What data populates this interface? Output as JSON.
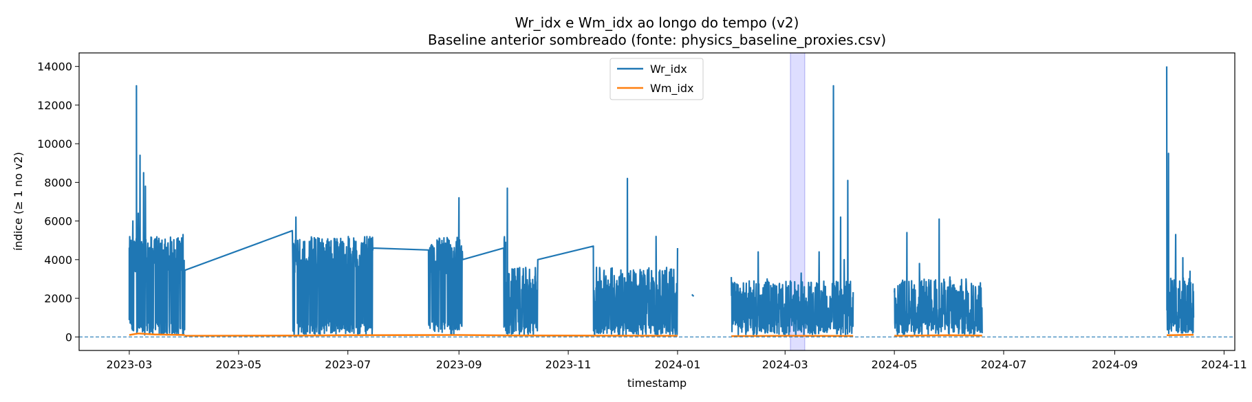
{
  "chart_data": {
    "type": "line",
    "title": "Wr_idx e Wm_idx ao longo do tempo (v2)",
    "subtitle": "Baseline anterior sombreado (fonte: physics_baseline_proxies.csv)",
    "xlabel": "timestamp",
    "ylabel": "índice (≥ 1 no v2)",
    "xlim": [
      "2023-02-01",
      "2024-11-07"
    ],
    "ylim": [
      -700,
      14700
    ],
    "x_ticks": [
      "2023-03",
      "2023-05",
      "2023-07",
      "2023-09",
      "2023-11",
      "2024-01",
      "2024-03",
      "2024-05",
      "2024-07",
      "2024-09",
      "2024-11"
    ],
    "y_ticks": [
      0,
      2000,
      4000,
      6000,
      8000,
      10000,
      12000,
      14000
    ],
    "grid": false,
    "legend_position": "upper center",
    "baseline_span": [
      "2024-03-04",
      "2024-03-12"
    ],
    "reference_line": {
      "y": 0,
      "style": "dashed"
    },
    "colors": {
      "Wr_idx": "#1f77b4",
      "Wm_idx": "#ff7f0e",
      "baseline_span": "#ccccff",
      "reference_line": "#1f77b4"
    },
    "series": [
      {
        "name": "Wr_idx",
        "color": "#1f77b4",
        "segments": [
          {
            "start": "2023-03-01",
            "end": "2023-09-27",
            "min": 100,
            "base": 4200,
            "spread": 1000,
            "envelope": "dense",
            "points": [
              [
                "2023-03-01",
                2800
              ],
              [
                "2023-03-01",
                4600
              ],
              [
                "2023-03-01",
                900
              ],
              [
                "2023-03-02",
                5000
              ],
              [
                "2023-03-03",
                6000
              ],
              [
                "2023-03-05",
                4200
              ],
              [
                "2023-03-05",
                13000
              ],
              [
                "2023-03-06",
                6400
              ],
              [
                "2023-03-07",
                9400
              ],
              [
                "2023-03-08",
                4300
              ],
              [
                "2023-03-09",
                8500
              ],
              [
                "2023-03-10",
                7800
              ],
              [
                "2023-03-12",
                4600
              ],
              [
                "2023-03-15",
                5000
              ],
              [
                "2023-03-20",
                4500
              ],
              [
                "2023-03-25",
                4000
              ],
              [
                "2023-03-26",
                600
              ],
              [
                "2023-03-28",
                5100
              ],
              [
                "2023-03-31",
                5300
              ],
              [
                "2023-04-01",
                3450
              ],
              [
                "2023-05-31",
                5500
              ],
              [
                "2023-06-01",
                100
              ],
              [
                "2023-06-02",
                6200
              ],
              [
                "2023-06-15",
                5100
              ],
              [
                "2023-06-27",
                5100
              ],
              [
                "2023-07-15",
                4600
              ],
              [
                "2023-08-15",
                4500
              ],
              [
                "2023-08-28",
                4600
              ],
              [
                "2023-09-01",
                7200
              ],
              [
                "2023-09-02",
                1200
              ],
              [
                "2023-09-03",
                4000
              ],
              [
                "2023-09-26",
                4600
              ]
            ]
          },
          {
            "start": "2023-09-27",
            "end": "2024-01-01",
            "min": 100,
            "base": 2400,
            "spread": 1200,
            "envelope": "dense",
            "points": [
              [
                "2023-09-27",
                2000
              ],
              [
                "2023-09-28",
                7700
              ],
              [
                "2023-10-15",
                4000
              ],
              [
                "2023-11-15",
                4700
              ],
              [
                "2023-12-04",
                8200
              ],
              [
                "2023-12-20",
                5200
              ],
              [
                "2024-01-01",
                4600
              ]
            ]
          },
          {
            "start": "2024-01-09",
            "end": "2024-01-10",
            "points": [
              [
                "2024-01-09",
                2200
              ],
              [
                "2024-01-10",
                2100
              ]
            ]
          },
          {
            "start": "2024-01-31",
            "end": "2024-04-08",
            "min": 100,
            "base": 1800,
            "spread": 1100,
            "envelope": "dense",
            "points": [
              [
                "2024-01-31",
                3100
              ],
              [
                "2024-02-09",
                2000
              ],
              [
                "2024-02-15",
                4400
              ],
              [
                "2024-02-20",
                3000
              ],
              [
                "2024-03-10",
                3300
              ],
              [
                "2024-03-20",
                4400
              ],
              [
                "2024-03-28",
                13000
              ],
              [
                "2024-03-30",
                2000
              ],
              [
                "2024-04-01",
                6200
              ],
              [
                "2024-04-03",
                4000
              ],
              [
                "2024-04-05",
                8100
              ],
              [
                "2024-04-07",
                1500
              ]
            ]
          },
          {
            "start": "2024-05-01",
            "end": "2024-06-19",
            "min": 100,
            "base": 1800,
            "spread": 1200,
            "envelope": "dense",
            "points": [
              [
                "2024-05-01",
                2300
              ],
              [
                "2024-05-08",
                5400
              ],
              [
                "2024-05-15",
                3800
              ],
              [
                "2024-05-26",
                6100
              ],
              [
                "2024-06-01",
                3100
              ],
              [
                "2024-06-10",
                3000
              ],
              [
                "2024-06-18",
                2800
              ]
            ]
          },
          {
            "start": "2024-09-30",
            "end": "2024-10-15",
            "min": 100,
            "base": 2000,
            "spread": 1100,
            "envelope": "dense",
            "points": [
              [
                "2024-09-30",
                14000
              ],
              [
                "2024-10-01",
                9500
              ],
              [
                "2024-10-02",
                1400
              ],
              [
                "2024-10-05",
                5300
              ],
              [
                "2024-10-09",
                4100
              ],
              [
                "2024-10-13",
                3400
              ],
              [
                "2024-10-15",
                1000
              ]
            ]
          }
        ]
      },
      {
        "name": "Wm_idx",
        "color": "#ff7f0e",
        "segments": [
          {
            "start": "2023-03-01",
            "end": "2023-04-01",
            "points": [
              [
                "2023-03-01",
                100
              ],
              [
                "2023-03-06",
                180
              ],
              [
                "2023-03-15",
                130
              ],
              [
                "2023-04-01",
                100
              ]
            ]
          },
          {
            "start": "2023-04-01",
            "end": "2023-09-27",
            "points": [
              [
                "2023-04-01",
                60
              ],
              [
                "2023-06-01",
                70
              ],
              [
                "2023-07-01",
                90
              ],
              [
                "2023-09-01",
                100
              ],
              [
                "2023-09-27",
                80
              ]
            ]
          },
          {
            "start": "2023-09-27",
            "end": "2024-01-01",
            "points": [
              [
                "2023-09-27",
                80
              ],
              [
                "2023-11-01",
                70
              ],
              [
                "2024-01-01",
                60
              ]
            ]
          },
          {
            "start": "2024-01-31",
            "end": "2024-04-08",
            "points": [
              [
                "2024-01-31",
                40
              ],
              [
                "2024-03-01",
                60
              ],
              [
                "2024-04-08",
                50
              ]
            ]
          },
          {
            "start": "2024-05-01",
            "end": "2024-06-19",
            "points": [
              [
                "2024-05-01",
                60
              ],
              [
                "2024-06-01",
                90
              ],
              [
                "2024-06-19",
                70
              ]
            ]
          },
          {
            "start": "2024-09-30",
            "end": "2024-10-15",
            "points": [
              [
                "2024-09-30",
                90
              ],
              [
                "2024-10-15",
                110
              ]
            ]
          }
        ]
      }
    ]
  }
}
